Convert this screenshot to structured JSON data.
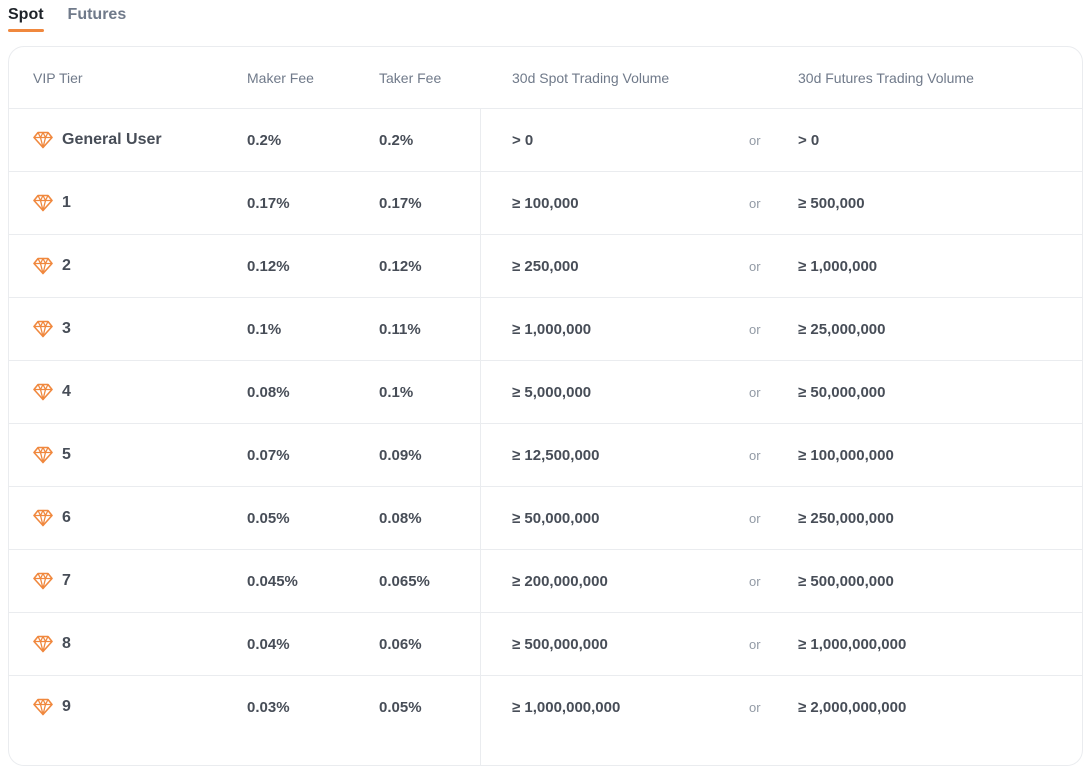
{
  "tabs": [
    {
      "label": "Spot",
      "active": true
    },
    {
      "label": "Futures",
      "active": false
    }
  ],
  "table": {
    "headers": {
      "tier": "VIP Tier",
      "maker": "Maker Fee",
      "taker": "Taker Fee",
      "spot_volume": "30d Spot Trading Volume",
      "futures_volume": "30d Futures Trading Volume"
    },
    "connector": "or",
    "tier_icon": "diamond-icon",
    "accent_color": "#f0883e",
    "rows": [
      {
        "tier": "General User",
        "maker": "0.2%",
        "taker": "0.2%",
        "spot": "> 0",
        "or": "or",
        "futures": "> 0"
      },
      {
        "tier": "1",
        "maker": "0.17%",
        "taker": "0.17%",
        "spot": "≥ 100,000",
        "or": "or",
        "futures": "≥ 500,000"
      },
      {
        "tier": "2",
        "maker": "0.12%",
        "taker": "0.12%",
        "spot": "≥ 250,000",
        "or": "or",
        "futures": "≥ 1,000,000"
      },
      {
        "tier": "3",
        "maker": "0.1%",
        "taker": "0.11%",
        "spot": "≥ 1,000,000",
        "or": "or",
        "futures": "≥ 25,000,000"
      },
      {
        "tier": "4",
        "maker": "0.08%",
        "taker": "0.1%",
        "spot": "≥ 5,000,000",
        "or": "or",
        "futures": "≥ 50,000,000"
      },
      {
        "tier": "5",
        "maker": "0.07%",
        "taker": "0.09%",
        "spot": "≥ 12,500,000",
        "or": "or",
        "futures": "≥ 100,000,000"
      },
      {
        "tier": "6",
        "maker": "0.05%",
        "taker": "0.08%",
        "spot": "≥ 50,000,000",
        "or": "or",
        "futures": "≥ 250,000,000"
      },
      {
        "tier": "7",
        "maker": "0.045%",
        "taker": "0.065%",
        "spot": "≥ 200,000,000",
        "or": "or",
        "futures": "≥ 500,000,000"
      },
      {
        "tier": "8",
        "maker": "0.04%",
        "taker": "0.06%",
        "spot": "≥ 500,000,000",
        "or": "or",
        "futures": "≥ 1,000,000,000"
      },
      {
        "tier": "9",
        "maker": "0.03%",
        "taker": "0.05%",
        "spot": "≥ 1,000,000,000",
        "or": "or",
        "futures": "≥ 2,000,000,000"
      }
    ]
  }
}
